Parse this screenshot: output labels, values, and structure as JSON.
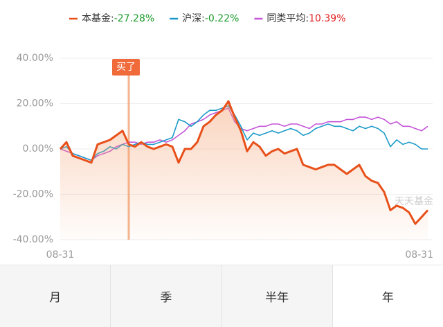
{
  "chart_data": {
    "type": "line",
    "series": [
      {
        "name": "本基金:",
        "legend_value": {
          "value": -27.28,
          "label": "-27.28%"
        },
        "value_color": "#1a9a2a",
        "color": "#e8501a",
        "area": true,
        "values": [
          0,
          3,
          -3,
          -4,
          -5,
          -6,
          2,
          3,
          4,
          6,
          8,
          2,
          1,
          3,
          1,
          0,
          1,
          2,
          1,
          -6,
          0,
          0,
          3,
          10,
          12,
          15,
          17,
          21,
          14,
          8,
          -1,
          3,
          1,
          -3,
          -1,
          0,
          -2,
          -1,
          0,
          -7,
          -8,
          -9,
          -8,
          -7,
          -7,
          -9,
          -11,
          -9,
          -7,
          -12,
          -14,
          -15,
          -19,
          -27,
          -25,
          -26,
          -28,
          -33,
          -30,
          -27
        ]
      },
      {
        "name": "沪深:",
        "legend_value": {
          "value": -0.22,
          "label": "-0.22%"
        },
        "value_color": "#1a9a2a",
        "color": "#1a9ac9",
        "values": [
          0,
          1,
          -2,
          -3,
          -4,
          -5,
          -2,
          -1,
          1,
          0,
          2,
          1,
          2,
          3,
          2,
          2,
          3,
          4,
          5,
          13,
          12,
          10,
          12,
          15,
          17,
          17,
          18,
          19,
          15,
          10,
          4,
          7,
          6,
          7,
          8,
          7,
          8,
          9,
          8,
          6,
          7,
          9,
          10,
          11,
          10,
          10,
          9,
          8,
          10,
          9,
          10,
          9,
          7,
          1,
          4,
          2,
          3,
          2,
          0,
          0
        ]
      },
      {
        "name": "同类平均:",
        "legend_value": {
          "value": 10.39,
          "label": "10.39%"
        },
        "value_color": "#e02020",
        "color": "#c455d8",
        "values": [
          0,
          -1,
          -2,
          -3,
          -4,
          -5,
          -3,
          -2,
          -1,
          1,
          2,
          3,
          3,
          2,
          3,
          3,
          4,
          3,
          4,
          6,
          8,
          11,
          12,
          13,
          15,
          16,
          17,
          18,
          12,
          9,
          8,
          9,
          10,
          10,
          11,
          11,
          10,
          11,
          11,
          10,
          9,
          11,
          11,
          12,
          12,
          12,
          13,
          13,
          14,
          14,
          13,
          14,
          13,
          11,
          12,
          10,
          10,
          9,
          8,
          10
        ]
      }
    ],
    "categories": [
      "08-31",
      null,
      null,
      null,
      null,
      null,
      null,
      null,
      null,
      null,
      null,
      null,
      null,
      null,
      null,
      null,
      null,
      null,
      null,
      null,
      null,
      null,
      null,
      null,
      null,
      null,
      null,
      null,
      null,
      null,
      null,
      null,
      null,
      null,
      null,
      null,
      null,
      null,
      null,
      null,
      null,
      null,
      null,
      null,
      null,
      null,
      null,
      null,
      null,
      null,
      null,
      null,
      null,
      null,
      null,
      null,
      null,
      null,
      null,
      "08-31"
    ],
    "ylim": [
      -40,
      40
    ],
    "yticks": [
      {
        "value": -40,
        "label": "-40.00%"
      },
      {
        "value": -20,
        "label": "-20.00%"
      },
      {
        "value": 0,
        "label": "0.00%"
      },
      {
        "value": 20,
        "label": "20.00%"
      },
      {
        "value": 40,
        "label": "40.00%"
      }
    ],
    "grid": true,
    "annotations": [
      {
        "text": "买了",
        "at": 11
      }
    ],
    "watermark": "天天基金"
  },
  "tabs": [
    {
      "label": "月",
      "selected": false
    },
    {
      "label": "季",
      "selected": false
    },
    {
      "label": "半年",
      "selected": false
    },
    {
      "label": "年",
      "selected": true
    }
  ]
}
